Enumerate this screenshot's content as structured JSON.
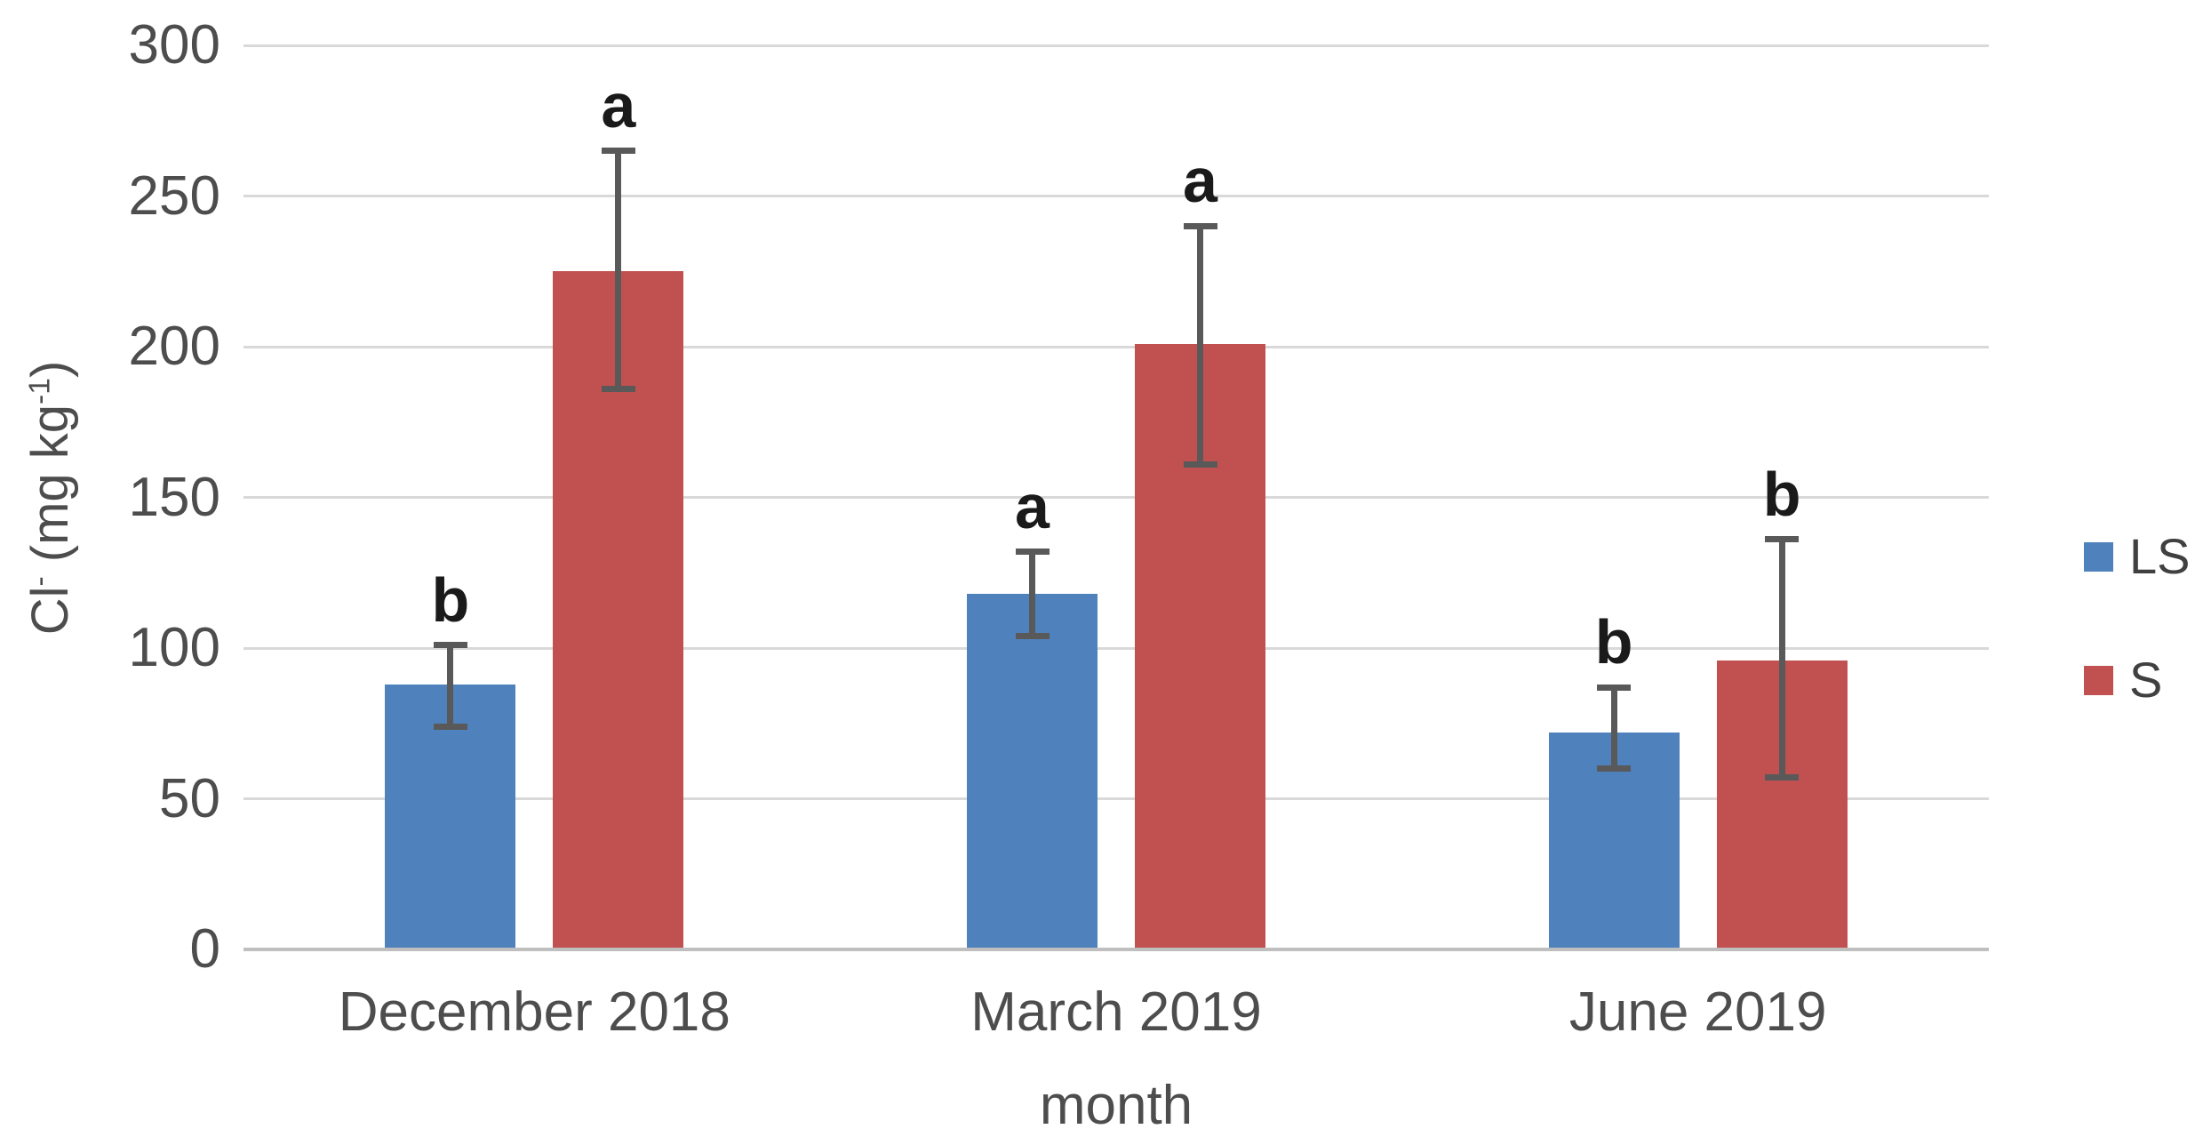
{
  "chart_data": {
    "type": "bar",
    "title": "",
    "categories": [
      "December 2018",
      "March 2019",
      "June 2019"
    ],
    "series": [
      {
        "name": "LS",
        "color": "#4F81BD",
        "values": [
          88,
          118,
          72
        ],
        "error_low": [
          74,
          104,
          60
        ],
        "error_high": [
          101,
          132,
          87
        ],
        "letters": [
          "b",
          "a",
          "b"
        ]
      },
      {
        "name": "S",
        "color": "#C15150",
        "values": [
          225,
          201,
          96
        ],
        "error_low": [
          186,
          161,
          57
        ],
        "error_high": [
          265,
          240,
          136
        ],
        "letters": [
          "a",
          "a",
          "b"
        ]
      }
    ],
    "xlabel": "month",
    "ylabel": "Cl⁻ (mg kg⁻¹)",
    "ylabel_parts": {
      "base1": "Cl",
      "sup1": "-",
      "base2": " (mg kg",
      "sup2": "-1",
      "base3": ")"
    },
    "ylim": [
      0,
      300
    ],
    "yticks": [
      0,
      50,
      100,
      150,
      200,
      250,
      300
    ],
    "grid": "horizontal",
    "legend_position": "right"
  },
  "styles": {
    "gridline_color": "#D9D9D9",
    "axis_line_color": "#BFBFBF",
    "error_bar_color": "#595959",
    "tick_label_color": "#4D4D4D",
    "category_label_color": "#4D4D4D",
    "axis_title_color": "#4D4D4D",
    "letter_color": "#1A1A1A",
    "background": "#FFFFFF"
  }
}
